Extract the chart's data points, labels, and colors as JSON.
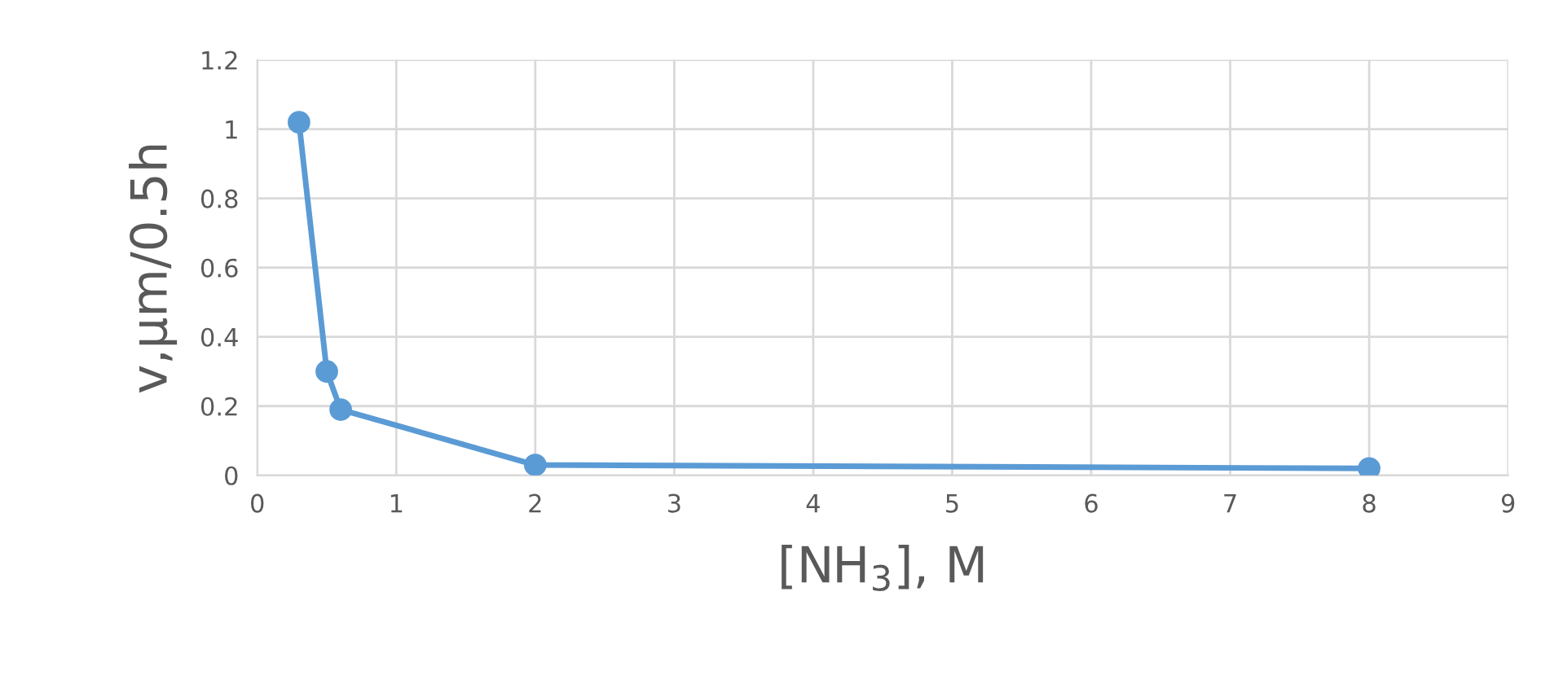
{
  "chart_data": {
    "type": "line",
    "xlabel": "[NH$_{3}$], M",
    "ylabel": "v,µm/0.5h",
    "x": [
      0.3,
      0.5,
      0.6,
      2,
      8
    ],
    "series": [
      {
        "color": "#5b9bd5",
        "values": [
          1.02,
          0.3,
          0.19,
          0.03,
          0.02
        ]
      }
    ],
    "xlim": [
      0,
      9
    ],
    "xticks": [
      0,
      1,
      2,
      3,
      4,
      5,
      6,
      7,
      8,
      9
    ],
    "ylim": [
      0,
      1.2
    ],
    "yticks": [
      0,
      {
        "value": 0.2,
        "label": "0.2"
      },
      {
        "value": 0.4,
        "label": "0.4"
      },
      {
        "value": 0.6,
        "label": "0.6"
      },
      {
        "value": 0.8,
        "label": "0.8"
      },
      1,
      {
        "value": 1.2,
        "label": "1.2"
      }
    ],
    "grid": true,
    "marker": "circle",
    "line_style": "solid"
  }
}
